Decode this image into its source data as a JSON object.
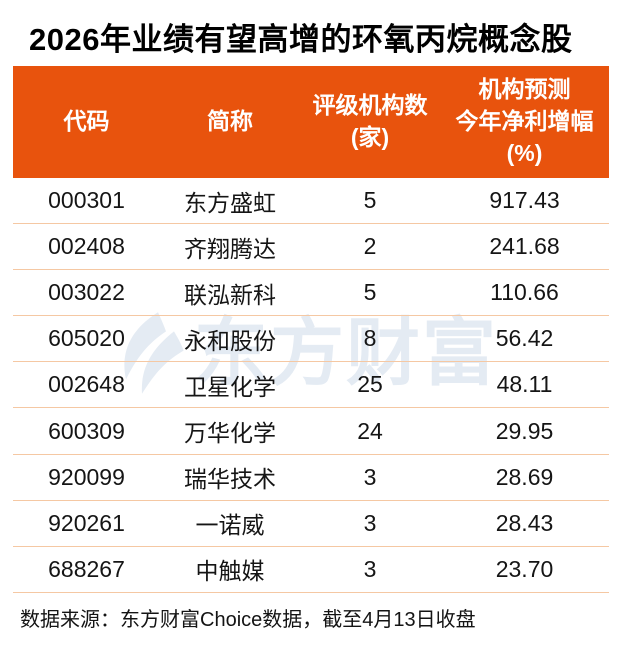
{
  "title": "2026年业绩有望高增的环氧丙烷概念股",
  "colors": {
    "header_bg": "#E8530D",
    "header_text": "#FFFFFF",
    "row_divider": "#F5C8A3",
    "body_text": "#151515",
    "watermark": "#E4EBF3",
    "title_text": "#000000"
  },
  "table": {
    "columns": [
      {
        "key": "code",
        "label": "代码"
      },
      {
        "key": "name",
        "label": "简称"
      },
      {
        "key": "agencies",
        "label": "评级机构数\n(家)"
      },
      {
        "key": "growth",
        "label": "机构预测\n今年净利增幅\n(%)"
      }
    ],
    "rows": [
      {
        "code": "000301",
        "name": "东方盛虹",
        "agencies": "5",
        "growth": "917.43"
      },
      {
        "code": "002408",
        "name": "齐翔腾达",
        "agencies": "2",
        "growth": "241.68"
      },
      {
        "code": "003022",
        "name": "联泓新科",
        "agencies": "5",
        "growth": "110.66"
      },
      {
        "code": "605020",
        "name": "永和股份",
        "agencies": "8",
        "growth": "56.42"
      },
      {
        "code": "002648",
        "name": "卫星化学",
        "agencies": "25",
        "growth": "48.11"
      },
      {
        "code": "600309",
        "name": "万华化学",
        "agencies": "24",
        "growth": "29.95"
      },
      {
        "code": "920099",
        "name": "瑞华技术",
        "agencies": "3",
        "growth": "28.69"
      },
      {
        "code": "920261",
        "name": "一诺威",
        "agencies": "3",
        "growth": "28.43"
      },
      {
        "code": "688267",
        "name": "中触媒",
        "agencies": "3",
        "growth": "23.70"
      }
    ]
  },
  "watermark": {
    "text": "东方财富",
    "logo": "eastmoney-logo"
  },
  "footer": {
    "text": "数据来源：东方财富Choice数据，截至4月13日收盘"
  },
  "chart_data": {
    "type": "table",
    "title": "2026年业绩有望高增的环氧丙烷概念股",
    "columns": [
      "代码",
      "简称",
      "评级机构数(家)",
      "机构预测今年净利增幅(%)"
    ],
    "rows": [
      [
        "000301",
        "东方盛虹",
        5,
        917.43
      ],
      [
        "002408",
        "齐翔腾达",
        2,
        241.68
      ],
      [
        "003022",
        "联泓新科",
        5,
        110.66
      ],
      [
        "605020",
        "永和股份",
        8,
        56.42
      ],
      [
        "002648",
        "卫星化学",
        25,
        48.11
      ],
      [
        "600309",
        "万华化学",
        24,
        29.95
      ],
      [
        "920099",
        "瑞华技术",
        3,
        28.69
      ],
      [
        "920261",
        "一诺威",
        3,
        28.43
      ],
      [
        "688267",
        "中触媒",
        3,
        23.7
      ]
    ],
    "source_note": "数据来源：东方财富Choice数据，截至4月13日收盘"
  }
}
